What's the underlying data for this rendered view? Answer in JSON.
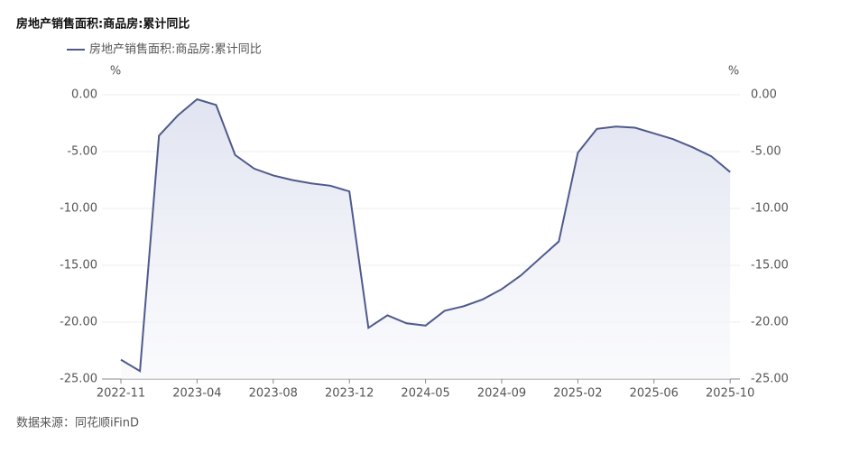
{
  "chart_data": {
    "type": "line",
    "title": "房地产销售面积:商品房:累计同比",
    "source": "数据来源：同花顺iFinD",
    "y_unit": "%",
    "y2_unit": "%",
    "categories": [
      "2022-11",
      null,
      null,
      null,
      "2023-04",
      null,
      null,
      null,
      "2023-08",
      null,
      null,
      null,
      "2023-12",
      null,
      null,
      null,
      "2024-05",
      null,
      null,
      null,
      "2024-09",
      null,
      null,
      null,
      "2025-02",
      null,
      null,
      null,
      "2025-06",
      null,
      null,
      null,
      "2025-10"
    ],
    "series": [
      {
        "name": "房地产销售面积:商品房:累计同比",
        "color": "#4f5a8c",
        "values": [
          -23.3,
          -24.3,
          -3.6,
          -1.8,
          -0.4,
          -0.9,
          -5.3,
          -6.5,
          -7.1,
          -7.5,
          -7.8,
          -8.0,
          -8.5,
          -20.5,
          -19.4,
          -20.1,
          -20.3,
          -19.0,
          -18.6,
          -18.0,
          -17.1,
          -15.9,
          -14.4,
          -12.9,
          -5.1,
          -3.0,
          -2.8,
          -2.9,
          -3.4,
          -3.9,
          -4.6,
          -5.4,
          -6.8
        ]
      }
    ],
    "ylim": [
      -25,
      0
    ],
    "yticks": [
      {
        "value": 0,
        "label": "0.00"
      },
      {
        "value": -5,
        "label": "-5.00"
      },
      {
        "value": -10,
        "label": "-10.00"
      },
      {
        "value": -15,
        "label": "-15.00"
      },
      {
        "value": -20,
        "label": "-20.00"
      },
      {
        "value": -25,
        "label": "-25.00"
      }
    ],
    "y2lim": [
      -25,
      0
    ],
    "y2ticks": [
      {
        "value": 0,
        "label": "0.00"
      },
      {
        "value": -5,
        "label": "-5.00"
      },
      {
        "value": -10,
        "label": "-10.00"
      },
      {
        "value": -15,
        "label": "-15.00"
      },
      {
        "value": -20,
        "label": "-20.00"
      },
      {
        "value": -25,
        "label": "-25.00"
      }
    ],
    "grid": true
  }
}
